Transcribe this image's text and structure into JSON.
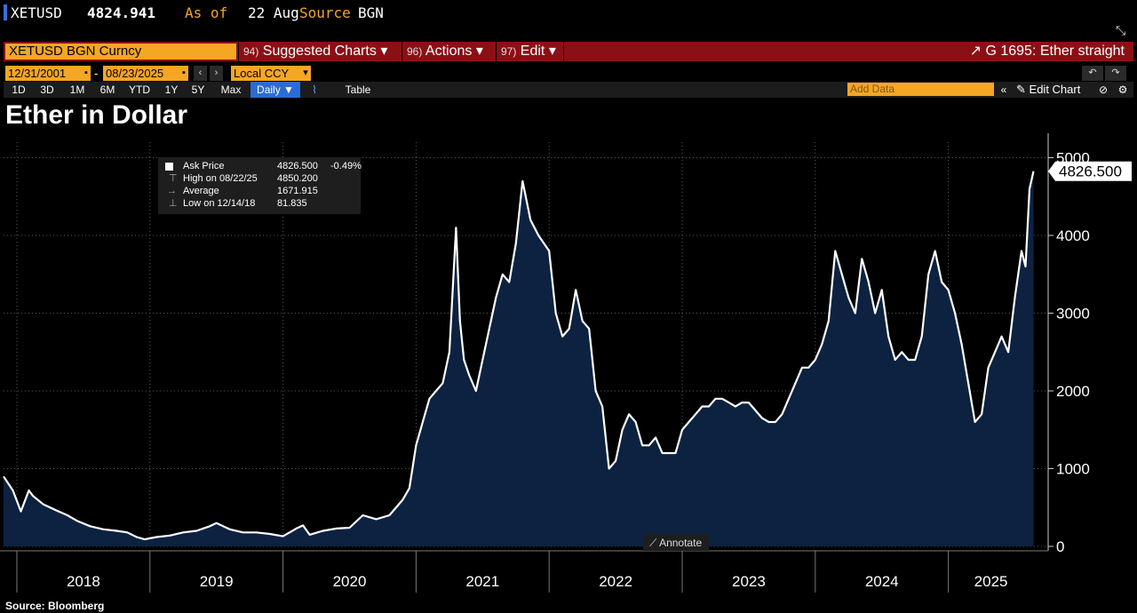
{
  "ticker": {
    "symbol": "XETUSD",
    "price": "4824.941",
    "as_of_label": "As of",
    "date": "22 Aug",
    "source_label": "Source",
    "source": "BGN"
  },
  "command_bar": {
    "security": "XETUSD BGN Curncy",
    "menus": [
      {
        "num": "94)",
        "label": "Suggested Charts ▾"
      },
      {
        "num": "96)",
        "label": "Actions ▾"
      },
      {
        "num": "97)",
        "label": "Edit ▾"
      }
    ],
    "chart_id": "G 1695: Ether straight"
  },
  "date_row": {
    "start_date": "12/31/2001",
    "end_date": "08/23/2025",
    "currency": "Local CCY"
  },
  "range_row": {
    "ranges": [
      "1D",
      "3D",
      "1M",
      "6M",
      "YTD",
      "1Y",
      "5Y",
      "Max"
    ],
    "frequency": "Daily ▼",
    "table": "Table",
    "add_data_placeholder": "Add Data",
    "edit_chart": "Edit Chart"
  },
  "page_title": "Ether in Dollar",
  "legend": {
    "rows": [
      {
        "label": "Ask Price",
        "value": "4826.500",
        "change": "-0.49%"
      },
      {
        "label": "High on 08/22/25",
        "value": "4850.200",
        "change": ""
      },
      {
        "label": "Average",
        "value": "1671.915",
        "change": ""
      },
      {
        "label": "Low on 12/14/18",
        "value": "81.835",
        "change": ""
      }
    ]
  },
  "annotate_label": "Annotate",
  "source_note": "Source: Bloomberg",
  "colors": {
    "background": "#000000",
    "area_fill": "#0d2240",
    "line": "#ffffff",
    "accent_orange": "#f5a623",
    "command_bar_red": "#8b1016"
  },
  "chart_data": {
    "type": "area",
    "title": "Ether in Dollar",
    "last_value_label": "4826.500",
    "ylim": [
      0,
      5200
    ],
    "yticks": [
      0,
      1000,
      2000,
      3000,
      4000,
      5000
    ],
    "xlim": [
      2017.9,
      2025.75
    ],
    "xtick_labels": [
      "2018",
      "2019",
      "2020",
      "2021",
      "2022",
      "2023",
      "2024",
      "2025"
    ],
    "grid": true,
    "series": [
      {
        "name": "Ask Price",
        "x": [
          2017.9,
          2017.97,
          2018.03,
          2018.09,
          2018.12,
          2018.2,
          2018.3,
          2018.38,
          2018.45,
          2018.55,
          2018.65,
          2018.75,
          2018.83,
          2018.9,
          2018.96,
          2019.05,
          2019.15,
          2019.25,
          2019.35,
          2019.45,
          2019.5,
          2019.6,
          2019.7,
          2019.8,
          2019.9,
          2020.0,
          2020.1,
          2020.15,
          2020.2,
          2020.3,
          2020.4,
          2020.5,
          2020.6,
          2020.7,
          2020.8,
          2020.9,
          2020.95,
          2021.0,
          2021.05,
          2021.1,
          2021.15,
          2021.2,
          2021.25,
          2021.3,
          2021.33,
          2021.36,
          2021.4,
          2021.45,
          2021.5,
          2021.55,
          2021.6,
          2021.65,
          2021.7,
          2021.75,
          2021.8,
          2021.86,
          2021.92,
          2022.0,
          2022.05,
          2022.1,
          2022.15,
          2022.2,
          2022.25,
          2022.3,
          2022.35,
          2022.4,
          2022.45,
          2022.5,
          2022.55,
          2022.6,
          2022.65,
          2022.7,
          2022.75,
          2022.8,
          2022.85,
          2022.9,
          2022.95,
          2023.0,
          2023.05,
          2023.1,
          2023.15,
          2023.2,
          2023.25,
          2023.3,
          2023.35,
          2023.4,
          2023.45,
          2023.5,
          2023.55,
          2023.6,
          2023.65,
          2023.7,
          2023.75,
          2023.8,
          2023.85,
          2023.9,
          2023.95,
          2024.0,
          2024.05,
          2024.1,
          2024.15,
          2024.2,
          2024.25,
          2024.3,
          2024.35,
          2024.4,
          2024.45,
          2024.5,
          2024.55,
          2024.6,
          2024.65,
          2024.7,
          2024.75,
          2024.8,
          2024.85,
          2024.9,
          2024.95,
          2025.0,
          2025.05,
          2025.1,
          2025.15,
          2025.2,
          2025.25,
          2025.3,
          2025.35,
          2025.4,
          2025.45,
          2025.5,
          2025.55,
          2025.58,
          2025.61,
          2025.64
        ],
        "y": [
          900,
          720,
          450,
          720,
          650,
          540,
          460,
          400,
          330,
          260,
          220,
          200,
          180,
          120,
          90,
          120,
          140,
          180,
          200,
          260,
          300,
          220,
          180,
          180,
          160,
          130,
          230,
          270,
          150,
          200,
          230,
          240,
          400,
          350,
          400,
          600,
          750,
          1300,
          1600,
          1900,
          2000,
          2100,
          2500,
          4100,
          2900,
          2400,
          2200,
          2000,
          2400,
          2800,
          3200,
          3500,
          3400,
          3900,
          4700,
          4200,
          4000,
          3800,
          3000,
          2700,
          2800,
          3300,
          2900,
          2800,
          2000,
          1800,
          1000,
          1100,
          1500,
          1700,
          1600,
          1300,
          1300,
          1400,
          1200,
          1200,
          1200,
          1500,
          1600,
          1700,
          1800,
          1800,
          1900,
          1900,
          1850,
          1800,
          1850,
          1850,
          1750,
          1650,
          1600,
          1600,
          1700,
          1900,
          2100,
          2300,
          2300,
          2400,
          2600,
          2900,
          3800,
          3500,
          3200,
          3000,
          3700,
          3400,
          3000,
          3300,
          2700,
          2400,
          2500,
          2400,
          2400,
          2700,
          3500,
          3800,
          3400,
          3300,
          3000,
          2600,
          2100,
          1600,
          1700,
          2300,
          2500,
          2700,
          2500,
          3200,
          3800,
          3600,
          4600,
          4826
        ]
      }
    ]
  }
}
